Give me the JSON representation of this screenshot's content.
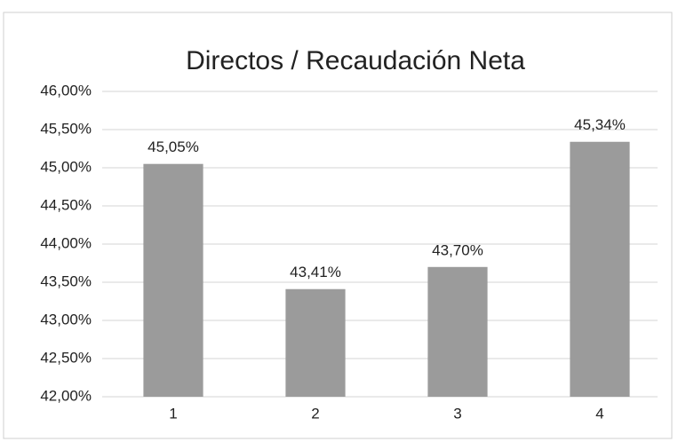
{
  "chart_data": {
    "type": "bar",
    "title": "Directos / Recaudación Neta",
    "categories": [
      "1",
      "2",
      "3",
      "4"
    ],
    "values": [
      45.05,
      43.41,
      43.7,
      45.34
    ],
    "value_labels": [
      "45,05%",
      "43,41%",
      "43,70%",
      "45,34%"
    ],
    "color": "#9b9b9b",
    "ylim": [
      42,
      46
    ],
    "yticks": [
      {
        "value": 42,
        "label": "42,00%"
      },
      {
        "value": 42.5,
        "label": "42,50%"
      },
      {
        "value": 43,
        "label": "43,00%"
      },
      {
        "value": 43.5,
        "label": "43,50%"
      },
      {
        "value": 44,
        "label": "44,00%"
      },
      {
        "value": 44.5,
        "label": "44,50%"
      },
      {
        "value": 45,
        "label": "45,00%"
      },
      {
        "value": 45.5,
        "label": "45,50%"
      },
      {
        "value": 46,
        "label": "46,00%"
      }
    ],
    "grid": true
  }
}
